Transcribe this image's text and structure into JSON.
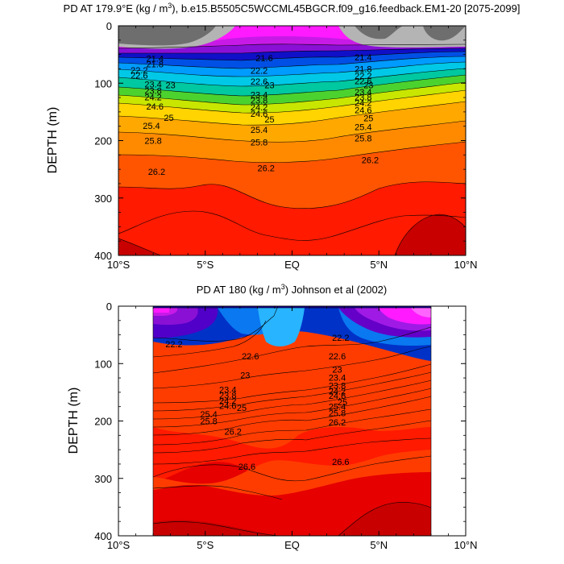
{
  "chart_data": [
    {
      "type": "contour",
      "title": "PD AT 179.9°E (kg / m³), b.e15.B5505C5WCCML45BGCR.f09_g16.feedback.EM1-20 [2075-2099]",
      "title_parts": {
        "pre": "PD AT 179.9",
        "deg": "°",
        "mid": "E (kg / m",
        "sup": "3",
        "post": "), b.e15.B5505C5WCCML45BGCR.f09_g16.feedback.EM1-20 [2075-2099]"
      },
      "ylabel": "DEPTH (m)",
      "xlabel": "",
      "xlim": [
        -10,
        10
      ],
      "ylim": [
        0,
        400
      ],
      "x_ticks": [
        -10,
        -5,
        0,
        5,
        10
      ],
      "x_ticklabels": [
        "10°S",
        "5°S",
        "EQ",
        "5°N",
        "10°N"
      ],
      "y_ticks": [
        0,
        100,
        200,
        300,
        400
      ],
      "y_ticklabels": [
        "0",
        "100",
        "200",
        "300",
        "400"
      ],
      "data_xrange": [
        -10,
        10
      ],
      "contour_labels": [
        {
          "text": "21.4",
          "x": -7.9,
          "y": 57
        },
        {
          "text": "21.8",
          "x": -7.9,
          "y": 67
        },
        {
          "text": "22.2",
          "x": -8.8,
          "y": 77
        },
        {
          "text": "22.6",
          "x": -8.8,
          "y": 86
        },
        {
          "text": "23",
          "x": -7.0,
          "y": 103
        },
        {
          "text": "23.4",
          "x": -8.0,
          "y": 102
        },
        {
          "text": "23.8",
          "x": -8.0,
          "y": 113
        },
        {
          "text": "24.2",
          "x": -8.0,
          "y": 124
        },
        {
          "text": "24.6",
          "x": -7.9,
          "y": 140
        },
        {
          "text": "25",
          "x": -7.1,
          "y": 160
        },
        {
          "text": "25.4",
          "x": -8.1,
          "y": 174
        },
        {
          "text": "25.8",
          "x": -8.0,
          "y": 200
        },
        {
          "text": "26.2",
          "x": -7.8,
          "y": 254
        },
        {
          "text": "21.6",
          "x": -1.6,
          "y": 56
        },
        {
          "text": "22.2",
          "x": -1.9,
          "y": 78
        },
        {
          "text": "22.6",
          "x": -1.9,
          "y": 97
        },
        {
          "text": "23",
          "x": -1.3,
          "y": 103
        },
        {
          "text": "23.4",
          "x": -1.9,
          "y": 120
        },
        {
          "text": "23.8",
          "x": -1.9,
          "y": 130
        },
        {
          "text": "24.2",
          "x": -1.9,
          "y": 142
        },
        {
          "text": "24.6",
          "x": -1.9,
          "y": 153
        },
        {
          "text": "25",
          "x": -1.3,
          "y": 163
        },
        {
          "text": "25.4",
          "x": -1.9,
          "y": 181
        },
        {
          "text": "25.8",
          "x": -1.9,
          "y": 203
        },
        {
          "text": "26.2",
          "x": -1.5,
          "y": 248
        },
        {
          "text": "21.4",
          "x": 4.1,
          "y": 55
        },
        {
          "text": "21.8",
          "x": 4.1,
          "y": 75
        },
        {
          "text": "22.2",
          "x": 4.1,
          "y": 87
        },
        {
          "text": "22.6",
          "x": 4.1,
          "y": 96
        },
        {
          "text": "23",
          "x": 4.4,
          "y": 103
        },
        {
          "text": "23.4",
          "x": 4.1,
          "y": 115
        },
        {
          "text": "23.8",
          "x": 4.1,
          "y": 124
        },
        {
          "text": "24.2",
          "x": 4.1,
          "y": 134
        },
        {
          "text": "24.6",
          "x": 4.1,
          "y": 147
        },
        {
          "text": "25",
          "x": 4.4,
          "y": 161
        },
        {
          "text": "25.4",
          "x": 4.1,
          "y": 176
        },
        {
          "text": "25.8",
          "x": 4.1,
          "y": 196
        },
        {
          "text": "26.2",
          "x": 4.5,
          "y": 234
        }
      ]
    },
    {
      "type": "contour",
      "title": "PD AT 180 (kg / m³) Johnson et al (2002)",
      "title_parts": {
        "pre": "PD AT 180 (kg / m",
        "sup": "3",
        "post": ") Johnson et al (2002)"
      },
      "ylabel": "DEPTH (m)",
      "xlabel": "",
      "xlim": [
        -10,
        10
      ],
      "ylim": [
        0,
        400
      ],
      "x_ticks": [
        -10,
        -5,
        0,
        5,
        10
      ],
      "x_ticklabels": [
        "10°S",
        "5°S",
        "EQ",
        "5°N",
        "10°N"
      ],
      "y_ticks": [
        0,
        100,
        200,
        300,
        400
      ],
      "y_ticklabels": [
        "0",
        "100",
        "200",
        "300",
        "400"
      ],
      "data_xrange": [
        -8,
        8
      ],
      "contour_labels": [
        {
          "text": "22.2",
          "x": -6.8,
          "y": 66
        },
        {
          "text": "22.6",
          "x": -2.4,
          "y": 87
        },
        {
          "text": "23",
          "x": -2.7,
          "y": 120
        },
        {
          "text": "23.4",
          "x": -3.7,
          "y": 145
        },
        {
          "text": "23.8",
          "x": -3.7,
          "y": 155
        },
        {
          "text": "24.2",
          "x": -3.7,
          "y": 165
        },
        {
          "text": "24.6",
          "x": -3.7,
          "y": 173
        },
        {
          "text": "25",
          "x": -2.9,
          "y": 177
        },
        {
          "text": "25.4",
          "x": -4.8,
          "y": 188
        },
        {
          "text": "25.8",
          "x": -4.8,
          "y": 200
        },
        {
          "text": "26.2",
          "x": -3.4,
          "y": 218
        },
        {
          "text": "26.6",
          "x": -2.6,
          "y": 279
        },
        {
          "text": "22.2",
          "x": 2.8,
          "y": 55
        },
        {
          "text": "22.6",
          "x": 2.6,
          "y": 87
        },
        {
          "text": "23",
          "x": 2.6,
          "y": 110
        },
        {
          "text": "23.4",
          "x": 2.6,
          "y": 124
        },
        {
          "text": "23.8",
          "x": 2.6,
          "y": 138
        },
        {
          "text": "24.2",
          "x": 2.6,
          "y": 148
        },
        {
          "text": "24.6",
          "x": 2.6,
          "y": 156
        },
        {
          "text": "25",
          "x": 2.9,
          "y": 167
        },
        {
          "text": "25.4",
          "x": 2.6,
          "y": 175
        },
        {
          "text": "25.8",
          "x": 2.6,
          "y": 186
        },
        {
          "text": "26.2",
          "x": 2.6,
          "y": 202
        },
        {
          "text": "26.6",
          "x": 2.8,
          "y": 271
        }
      ]
    }
  ]
}
